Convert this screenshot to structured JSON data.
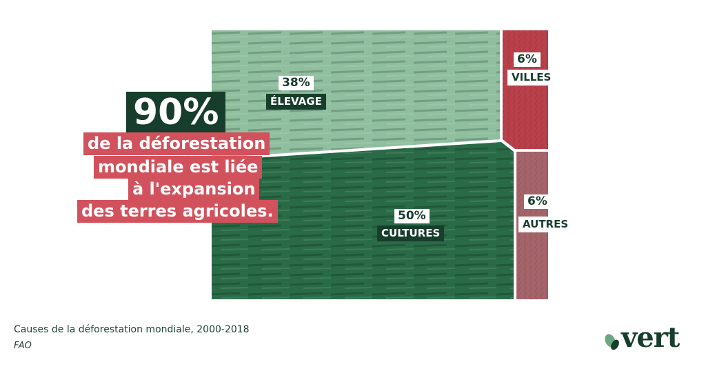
{
  "headline": {
    "big_value": "90%",
    "lines": [
      "de la déforestation",
      "mondiale est liée",
      "à l'expansion",
      "des terres agricoles."
    ]
  },
  "chart_data": {
    "type": "treemap",
    "title": "Causes de la déforestation mondiale, 2000-2018",
    "source": "FAO",
    "segments": [
      {
        "name": "ÉLEVAGE",
        "value": 38,
        "label": "38%"
      },
      {
        "name": "CULTURES",
        "value": 50,
        "label": "50%"
      },
      {
        "name": "VILLES",
        "value": 6,
        "label": "6%"
      },
      {
        "name": "AUTRES",
        "value": 6,
        "label": "6%"
      }
    ],
    "colors": {
      "elevage": "#8fbf9e",
      "cultures": "#2a6b47",
      "villes": "#b8404a",
      "autres": "#a5646a"
    }
  },
  "logo": {
    "text": "vert",
    "icon": "leaf-icon",
    "color": "#173d2c"
  }
}
